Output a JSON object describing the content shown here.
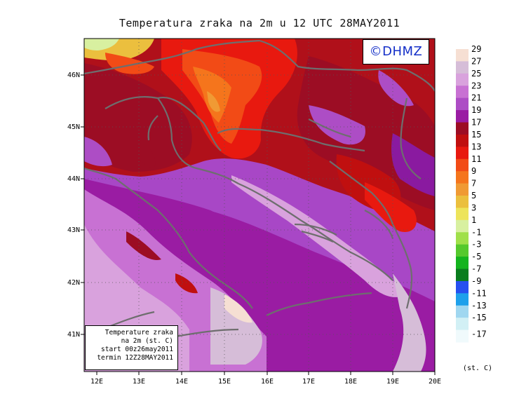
{
  "title": "Temperatura zraka na 2m u 12 UTC 28MAY2011",
  "copyright": "©DHMZ",
  "info_box": {
    "line1": "Temperature zraka",
    "line2": "na 2m (st. C)",
    "line3": "start 00z26may2011",
    "line4": "termin 12Z28MAY2011"
  },
  "axes": {
    "lon_labels": [
      "12E",
      "13E",
      "14E",
      "15E",
      "16E",
      "17E",
      "18E",
      "19E",
      "20E"
    ],
    "lat_labels": [
      "46N",
      "45N",
      "44N",
      "43N",
      "42N",
      "41N"
    ]
  },
  "colorbar": {
    "unit": "(st. C)",
    "labels": [
      "29",
      "27",
      "25",
      "23",
      "21",
      "19",
      "17",
      "15",
      "13",
      "11",
      "9",
      "7",
      "5",
      "3",
      "1",
      "-1",
      "-3",
      "-5",
      "-7",
      "-9",
      "-11",
      "-13",
      "-15",
      "-17"
    ],
    "colors": [
      "#f6dfd3",
      "#d6bdd8",
      "#d9a2dd",
      "#c871d3",
      "#ad4dc5",
      "#9a1ca3",
      "#9c0d24",
      "#c00f0f",
      "#e8190f",
      "#f24b16",
      "#f5751c",
      "#f09a34",
      "#ebbf3e",
      "#ede45b",
      "#d8f0a0",
      "#a0e04a",
      "#55c92d",
      "#14b41e",
      "#0a7d1e",
      "#2650f0",
      "#1ea0eb",
      "#a0d7f0",
      "#d2f0f5",
      "#f0fafc"
    ]
  },
  "colors": {
    "sea": "#a847c6",
    "land_warm": "#b0101a",
    "border": "#6e6e6e"
  }
}
